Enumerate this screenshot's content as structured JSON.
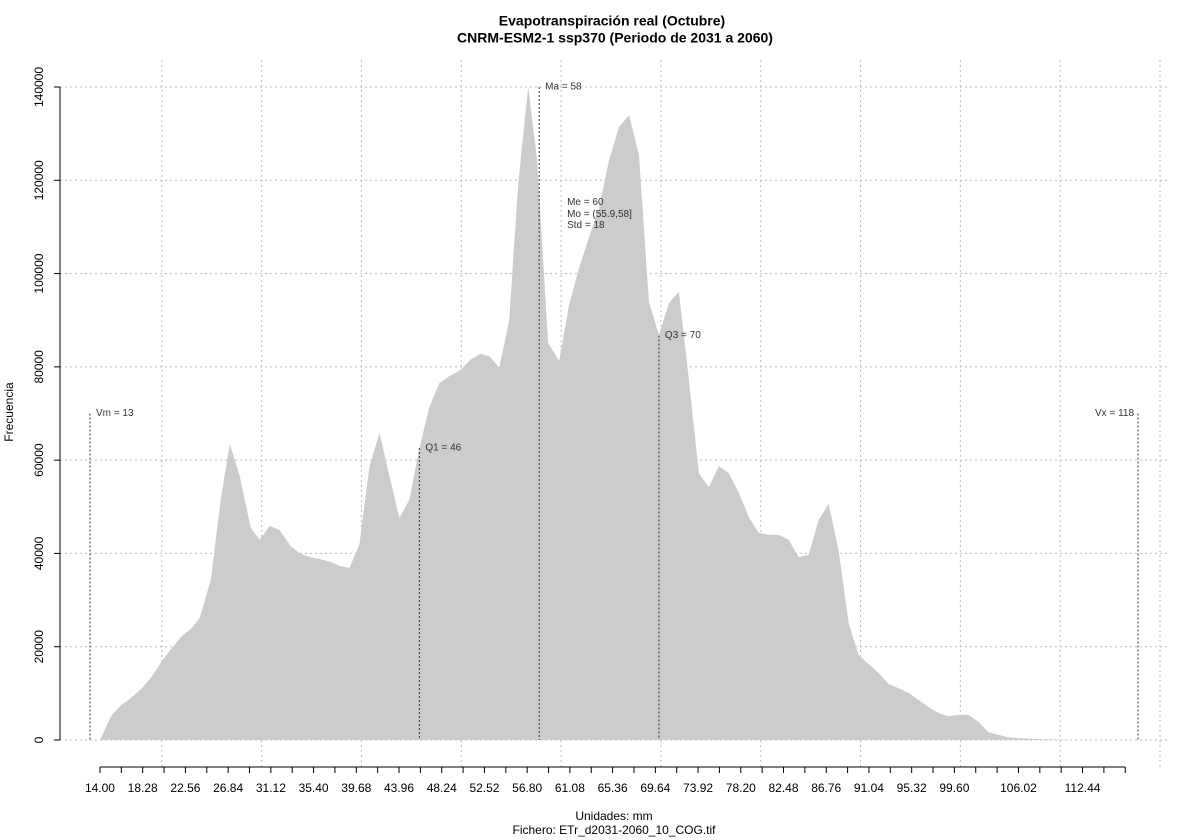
{
  "chart_data": {
    "type": "area",
    "title": "Evapotranspiración real (Octubre)",
    "subtitle": "CNRM-ESM2-1 ssp370 (Periodo de 2031 a 2060)",
    "xlabel": "Unidades: mm",
    "caption": "Fichero: ETr_d2031-2060_10_COG.tif",
    "ylabel": "Frecuencia",
    "color": "#cccccc",
    "grid": true,
    "x": [
      14.0,
      15.1,
      16.0,
      17.1,
      18.2,
      19.3,
      20.3,
      21.2,
      22.2,
      23.2,
      24.0,
      25.1,
      26.1,
      27.0,
      28.0,
      29.1,
      30.0,
      31.0,
      32.0,
      33.1,
      34.1,
      35.1,
      36.0,
      37.1,
      38.0,
      39.0,
      40.0,
      41.0,
      42.0,
      43.0,
      44.0,
      45.0,
      46.0,
      47.0,
      48.0,
      49.0,
      50.1,
      51.1,
      52.1,
      53.0,
      54.0,
      55.0,
      55.9,
      56.9,
      57.8,
      58.9,
      60.0,
      61.0,
      62.0,
      63.0,
      64.0,
      65.0,
      66.0,
      67.0,
      68.0,
      69.0,
      70.0,
      71.0,
      72.0,
      73.0,
      74.0,
      75.0,
      76.0,
      77.0,
      78.0,
      79.0,
      80.0,
      81.0,
      82.0,
      83.0,
      84.0,
      85.0,
      86.0,
      87.0,
      88.0,
      89.0,
      90.0,
      91.0,
      92.0,
      93.0,
      94.0,
      95.0,
      96.0,
      97.0,
      98.0,
      99.0,
      100.0,
      101.0,
      102.0,
      103.0,
      104.0,
      105.0,
      106.0,
      108.0,
      112.0,
      116.8
    ],
    "values": [
      0,
      5100,
      7300,
      9000,
      11100,
      13900,
      17200,
      19700,
      22300,
      24000,
      26200,
      34300,
      51500,
      63500,
      56600,
      45500,
      42900,
      45900,
      45000,
      41600,
      39900,
      39200,
      38800,
      38200,
      37300,
      36900,
      42000,
      58700,
      65800,
      56600,
      47600,
      51500,
      62600,
      71400,
      76500,
      78000,
      79300,
      81500,
      82800,
      82300,
      79800,
      90000,
      119200,
      140000,
      124300,
      85100,
      81300,
      93300,
      101200,
      107800,
      114100,
      124300,
      131400,
      134000,
      125400,
      93900,
      86800,
      93700,
      96100,
      77200,
      57200,
      54200,
      58700,
      57200,
      53000,
      47800,
      44400,
      44000,
      44000,
      42900,
      39200,
      39700,
      47200,
      50600,
      40700,
      25100,
      18200,
      16300,
      14400,
      12000,
      11100,
      10100,
      8600,
      7100,
      5800,
      5100,
      5400,
      5400,
      3900,
      1700,
      1100,
      600,
      400,
      200,
      0,
      0
    ],
    "ylim": [
      0,
      140000
    ],
    "yticks": [
      0,
      20000,
      40000,
      60000,
      80000,
      100000,
      120000,
      140000
    ],
    "xlim": [
      13,
      120.2
    ],
    "xticks": [
      {
        "value": 14.0,
        "label": "14.00"
      },
      {
        "value": 18.28,
        "label": "18.28"
      },
      {
        "value": 22.56,
        "label": "22.56"
      },
      {
        "value": 26.84,
        "label": "26.84"
      },
      {
        "value": 31.12,
        "label": "31.12"
      },
      {
        "value": 35.4,
        "label": "35.40"
      },
      {
        "value": 39.68,
        "label": "39.68"
      },
      {
        "value": 43.96,
        "label": "43.96"
      },
      {
        "value": 48.24,
        "label": "48.24"
      },
      {
        "value": 52.52,
        "label": "52.52"
      },
      {
        "value": 56.8,
        "label": "56.80"
      },
      {
        "value": 61.08,
        "label": "61.08"
      },
      {
        "value": 65.36,
        "label": "65.36"
      },
      {
        "value": 69.64,
        "label": "69.64"
      },
      {
        "value": 73.92,
        "label": "73.92"
      },
      {
        "value": 78.2,
        "label": "78.20"
      },
      {
        "value": 82.48,
        "label": "82.48"
      },
      {
        "value": 86.76,
        "label": "86.76"
      },
      {
        "value": 91.04,
        "label": "91.04"
      },
      {
        "value": 95.32,
        "label": "95.32"
      },
      {
        "value": 99.6,
        "label": "99.60"
      },
      {
        "value": 106.02,
        "label": "106.02"
      },
      {
        "value": 112.44,
        "label": "112.44"
      }
    ],
    "xminor_ticks": [
      16.14,
      20.42,
      24.7,
      28.98,
      33.26,
      37.54,
      41.82,
      46.1,
      50.38,
      54.66,
      58.94,
      63.22,
      67.5,
      71.78,
      76.06,
      80.34,
      84.62,
      88.9,
      93.18,
      97.46,
      101.74,
      103.88,
      108.16,
      110.3,
      114.58,
      116.72
    ],
    "xgrid": [
      20.2,
      30.2,
      40.2,
      50.2,
      60.2,
      70.2,
      80.2,
      90.2,
      100.2,
      110.2,
      120.2
    ],
    "annotations": [
      {
        "text": "Vm = 13",
        "x": 13,
        "y": 70000,
        "line": true
      },
      {
        "text": "Q1 = 46",
        "x": 46,
        "y": 62600,
        "line": true
      },
      {
        "text": "Ma = 58",
        "x": 58,
        "y": 140000,
        "line": true
      },
      {
        "text": "Q3 = 70",
        "x": 70,
        "y": 86700,
        "line": true
      },
      {
        "text": "Vx = 118",
        "x": 118,
        "y": 70000,
        "line": true
      },
      {
        "text": "Me = 60",
        "x": 60.8,
        "y": 115300,
        "line": false
      },
      {
        "text": "Mo = (55.9,58]",
        "x": 60.8,
        "y": 112700,
        "line": false
      },
      {
        "text": "Std = 18",
        "x": 60.8,
        "y": 110300,
        "line": false
      }
    ]
  }
}
